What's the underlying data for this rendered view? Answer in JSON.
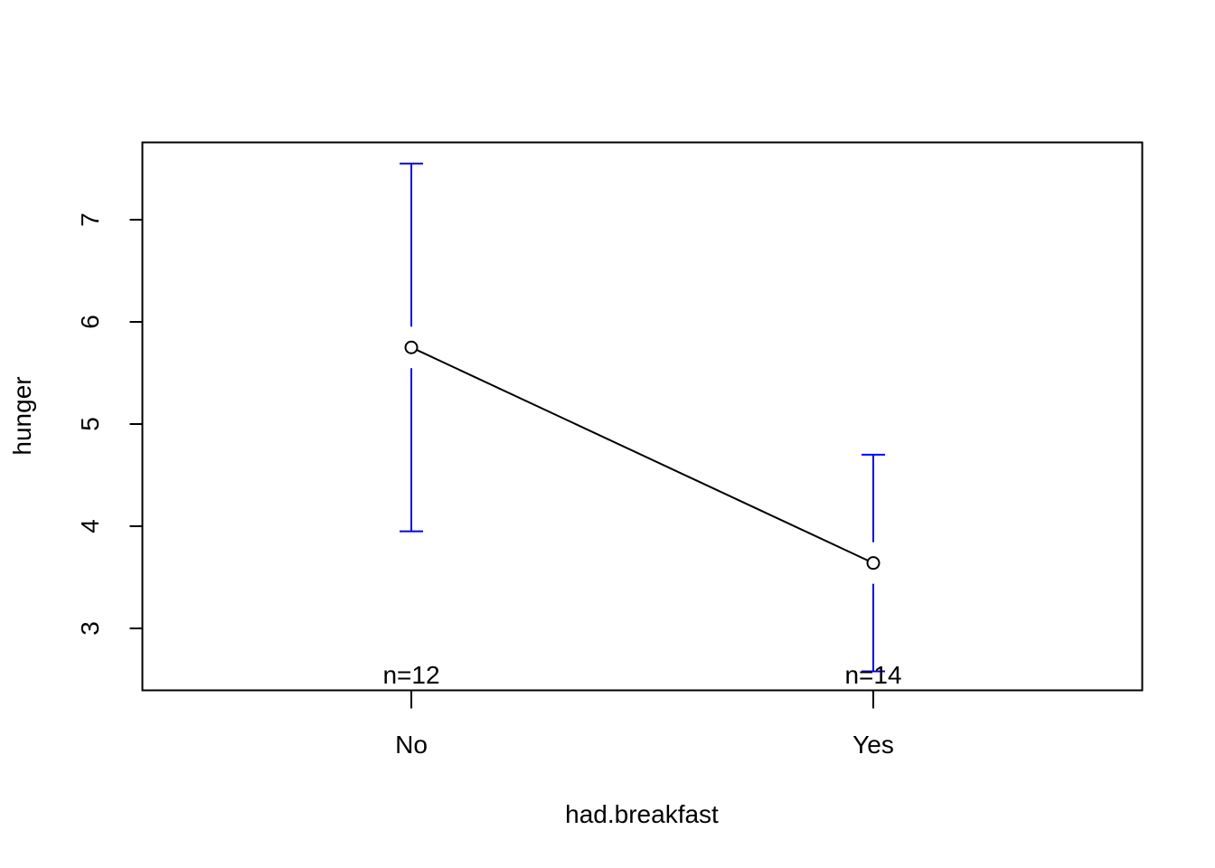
{
  "chart_data": {
    "type": "line",
    "xlabel": "had.breakfast",
    "ylabel": "hunger",
    "categories": [
      "No",
      "Yes"
    ],
    "means": [
      5.75,
      3.64
    ],
    "ci_lower": [
      3.95,
      2.58
    ],
    "ci_upper": [
      7.55,
      4.7
    ],
    "n_labels": [
      "n=12",
      "n=14"
    ],
    "yticks": [
      3,
      4,
      5,
      6,
      7
    ],
    "ylim": [
      2.4,
      7.75
    ],
    "grid": false,
    "colors": {
      "line": "#000000",
      "error_bar": "#0000ff",
      "point": "#000000"
    }
  }
}
